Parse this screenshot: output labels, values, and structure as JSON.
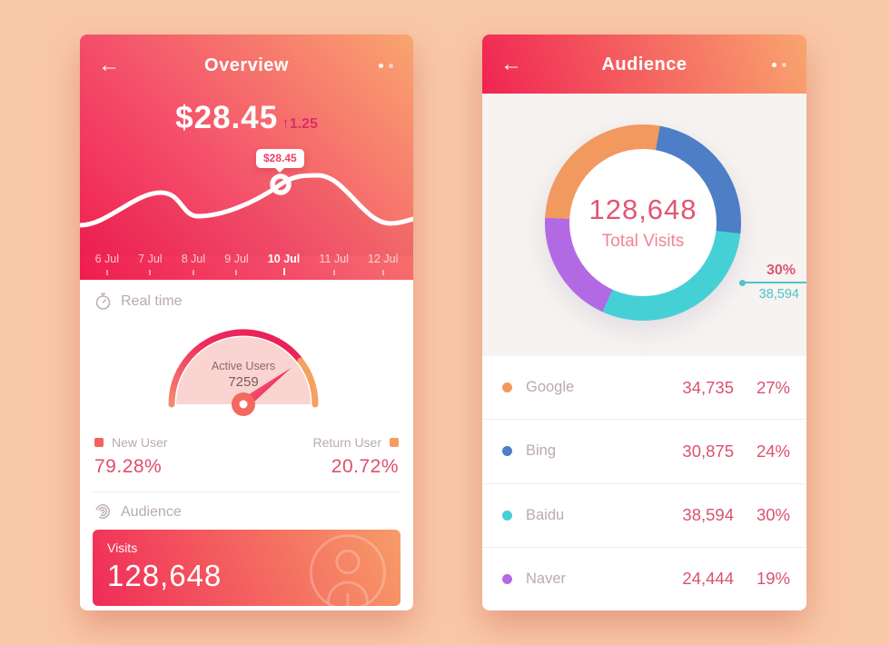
{
  "page": {
    "background": "#f9c8a8",
    "accent_gradient": [
      "#ef1c4e",
      "#f9a56f"
    ]
  },
  "overview": {
    "title": "Overview",
    "back_icon": "left-arrow",
    "menu_icon": "more-dots",
    "amount": "$28.45",
    "delta_arrow": "↑",
    "delta": "1.25",
    "tooltip": "$28.45",
    "dates": [
      "6 Jul",
      "7 Jul",
      "8 Jul",
      "9 Jul",
      "10 Jul",
      "11 Jul",
      "12 Jul"
    ],
    "active_date": "10 Jul",
    "realtime": {
      "label": "Real time",
      "gauge_label": "Active Users",
      "gauge_value": "7259",
      "new_user_pct": 79.28,
      "new_user": {
        "label": "New User",
        "value": "79.28%",
        "color": "#f4635c"
      },
      "return_user": {
        "label": "Return User",
        "value": "20.72%",
        "color": "#f69c62"
      }
    },
    "audience_section": {
      "label": "Audience",
      "visits_label": "Visits",
      "visits_value": "128,648"
    }
  },
  "audience": {
    "title": "Audience",
    "back_icon": "left-arrow",
    "menu_icon": "more-dots",
    "total_value": "128,648",
    "total_label": "Total Visits",
    "callout": {
      "percent": "30%",
      "value": "38,594",
      "color": "#4cc5c9"
    },
    "donut": {
      "start_deg": 10,
      "order": [
        1,
        2,
        3,
        0
      ]
    },
    "sources": [
      {
        "name": "Google",
        "value": "34,735",
        "percent": "27%",
        "pct": 27,
        "color": "#f2995f"
      },
      {
        "name": "Bing",
        "value": "30,875",
        "percent": "24%",
        "pct": 24,
        "color": "#4d7ec6"
      },
      {
        "name": "Baidu",
        "value": "38,594",
        "percent": "30%",
        "pct": 30,
        "color": "#45d0d6"
      },
      {
        "name": "Naver",
        "value": "24,444",
        "percent": "19%",
        "pct": 19,
        "color": "#b16ae4"
      }
    ]
  },
  "chart_data": [
    {
      "type": "line",
      "title": "$28.45 daily trend",
      "categories": [
        "6 Jul",
        "7 Jul",
        "8 Jul",
        "9 Jul",
        "10 Jul",
        "11 Jul",
        "12 Jul"
      ],
      "values_relative_0to100": [
        22,
        55,
        32,
        46,
        70,
        80,
        48
      ],
      "highlight": {
        "x": "10 Jul",
        "label": "$28.45"
      },
      "note": "y-axis unlabeled; values estimated from curve height",
      "legend_position": "none",
      "grid": false
    },
    {
      "type": "pie",
      "subtype": "donut",
      "title": "Total Visits",
      "total": 128648,
      "categories": [
        "Google",
        "Bing",
        "Baidu",
        "Naver"
      ],
      "values": [
        34735,
        30875,
        38594,
        24444
      ],
      "percents": [
        27,
        24,
        30,
        19
      ],
      "colors": [
        "#f2995f",
        "#4d7ec6",
        "#45d0d6",
        "#b16ae4"
      ],
      "annotation": {
        "segment": "Baidu",
        "percent": "30%",
        "value": "38,594"
      }
    },
    {
      "type": "gauge",
      "title": "Active Users",
      "value": 7259,
      "series": [
        {
          "name": "New User",
          "values": [
            79.28
          ]
        },
        {
          "name": "Return User",
          "values": [
            20.72
          ]
        }
      ]
    }
  ]
}
